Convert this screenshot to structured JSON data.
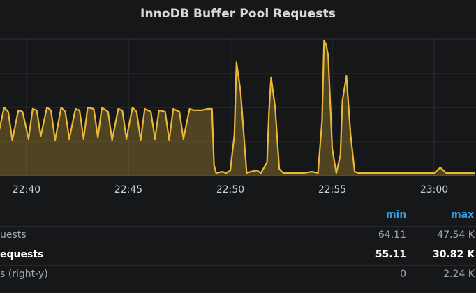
{
  "panel": {
    "title": "InnoDB Buffer Pool Requests"
  },
  "legend": {
    "headers": {
      "min": "min",
      "max": "max"
    },
    "rows": [
      {
        "name": "uests",
        "min": "64.11",
        "max": "47.54 K",
        "style": "dim"
      },
      {
        "name": "equests",
        "min": "55.11",
        "max": "30.82 K",
        "style": "bold"
      },
      {
        "name": "s (right-y)",
        "min": "0",
        "max": "2.24 K",
        "style": "dim"
      }
    ]
  },
  "colors": {
    "series": "#eab839",
    "grid": "#2c2f33",
    "background": "#161719"
  },
  "chart_data": {
    "type": "area",
    "title": "InnoDB Buffer Pool Requests",
    "x_ticks": [
      "22:40",
      "22:45",
      "22:50",
      "22:55",
      "23:00"
    ],
    "y_range": [
      0,
      1
    ],
    "grid": true,
    "legend_placement": "bottom",
    "series": [
      {
        "x_minutes": [
          37.0,
          37.3,
          37.5,
          37.8,
          38.0,
          38.2,
          38.4,
          38.6,
          38.9,
          39.1,
          39.3,
          39.6,
          39.8,
          40.1,
          40.3,
          40.5,
          40.7,
          41.0,
          41.2,
          41.4,
          41.7,
          41.9,
          42.1,
          42.4,
          42.6,
          42.8,
          43.0,
          43.3,
          43.5,
          43.7,
          44.0,
          44.2,
          44.5,
          44.7,
          44.9,
          45.2,
          45.4,
          45.6,
          45.8,
          46.1,
          46.3,
          46.5,
          46.8,
          47.0,
          47.2,
          47.5,
          47.7,
          48.0,
          48.2,
          48.4,
          48.6,
          48.9,
          49.1,
          49.2,
          49.3,
          49.6,
          49.8,
          50.0,
          50.2,
          50.3,
          50.5,
          50.8,
          51.0,
          51.3,
          51.5,
          51.8,
          51.9,
          52.0,
          52.2,
          52.4,
          52.6,
          52.8,
          53.2,
          53.6,
          54.0,
          54.3,
          54.5,
          54.6,
          54.7,
          54.8,
          55.0,
          55.2,
          55.4,
          55.5,
          55.7,
          55.9,
          56.1,
          56.3,
          56.6,
          57.0,
          57.5,
          58.0,
          58.5,
          59.0,
          59.5,
          60.0,
          60.3,
          60.6,
          60.9,
          61.3,
          61.7,
          62.0
        ],
        "values": [
          0.41,
          0.22,
          0.49,
          0.48,
          0.26,
          0.5,
          0.48,
          0.29,
          0.5,
          0.47,
          0.26,
          0.48,
          0.47,
          0.27,
          0.49,
          0.48,
          0.29,
          0.5,
          0.48,
          0.26,
          0.5,
          0.47,
          0.27,
          0.49,
          0.48,
          0.27,
          0.5,
          0.49,
          0.28,
          0.5,
          0.47,
          0.26,
          0.49,
          0.48,
          0.27,
          0.5,
          0.47,
          0.26,
          0.49,
          0.47,
          0.27,
          0.48,
          0.47,
          0.26,
          0.49,
          0.47,
          0.27,
          0.49,
          0.48,
          0.48,
          0.48,
          0.49,
          0.49,
          0.08,
          0.02,
          0.03,
          0.02,
          0.04,
          0.3,
          0.83,
          0.62,
          0.02,
          0.03,
          0.04,
          0.02,
          0.1,
          0.48,
          0.72,
          0.5,
          0.05,
          0.02,
          0.02,
          0.02,
          0.02,
          0.03,
          0.02,
          0.4,
          0.99,
          0.96,
          0.88,
          0.2,
          0.02,
          0.15,
          0.55,
          0.73,
          0.3,
          0.03,
          0.02,
          0.02,
          0.02,
          0.02,
          0.02,
          0.02,
          0.02,
          0.02,
          0.02,
          0.06,
          0.02,
          0.02,
          0.02,
          0.02,
          0.02
        ]
      }
    ]
  }
}
